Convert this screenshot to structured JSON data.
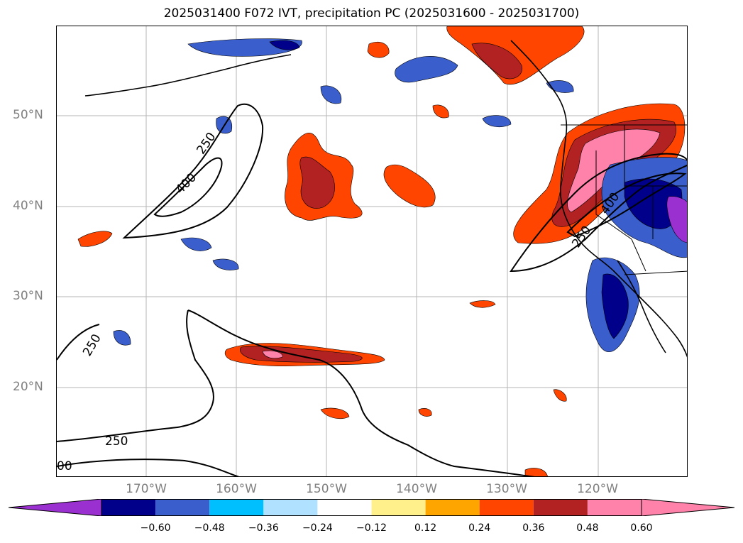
{
  "title": "2025031400 F072 IVT, precipitation PC (2025031600 - 2025031700)",
  "colors": {
    "neg_extend": "#9b30d0",
    "levels": [
      "#00008b",
      "#3a5fcd",
      "#00bfff",
      "#b0e2ff",
      "#ffffff",
      "#fff08c",
      "#ffa500",
      "#ff4500",
      "#b22222",
      "#ff82ab"
    ],
    "pos_extend": "#ff82ab",
    "contour": "#000000"
  },
  "lat_ticks": [
    "50°N",
    "40°N",
    "30°N",
    "20°N"
  ],
  "lon_ticks": [
    "170°W",
    "160°W",
    "150°W",
    "140°W",
    "130°W",
    "120°W"
  ],
  "colorbar": {
    "ticks": [
      "−0.60",
      "−0.48",
      "−0.36",
      "−0.24",
      "−0.12",
      "0.12",
      "0.24",
      "0.36",
      "0.48",
      "0.60"
    ]
  },
  "contour_labels": [
    "250",
    "400",
    "250",
    "400",
    "250",
    "250",
    "00"
  ]
}
